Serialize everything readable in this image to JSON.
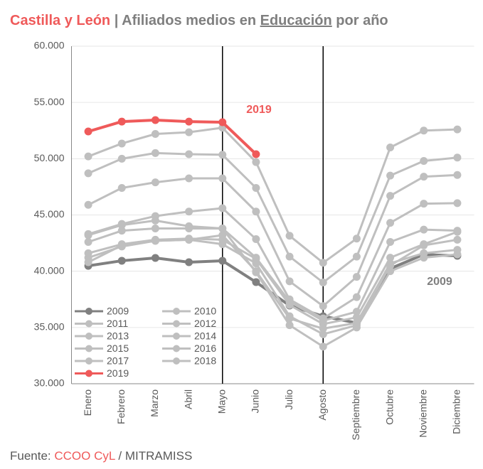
{
  "chart_data": {
    "type": "line",
    "title_parts": [
      {
        "text": "Castilla y León",
        "color": "#ef5a5a"
      },
      {
        "text": " | Afiliados medios en ",
        "color": "#7f7f7f"
      },
      {
        "text": "Educación",
        "color": "#7f7f7f",
        "underline": true
      },
      {
        "text": " por año",
        "color": "#7f7f7f"
      }
    ],
    "source_parts": [
      {
        "text": "Fuente: ",
        "color": "#595959"
      },
      {
        "text": "CCOO CyL",
        "color": "#ef5a5a"
      },
      {
        "text": " / MITRAMISS",
        "color": "#595959"
      }
    ],
    "categories": [
      "Enero",
      "Febrero",
      "Marzo",
      "Abril",
      "Mayo",
      "Junio",
      "Julio",
      "Agosto",
      "Septiembre",
      "Octubre",
      "Noviembre",
      "Diciembre"
    ],
    "ylim": [
      30000,
      60000
    ],
    "yticks": [
      {
        "value": 30000,
        "label": "30.000"
      },
      {
        "value": 35000,
        "label": "35.000"
      },
      {
        "value": 40000,
        "label": "40.000"
      },
      {
        "value": 45000,
        "label": "45.000"
      },
      {
        "value": 50000,
        "label": "50.000"
      },
      {
        "value": 55000,
        "label": "55.000"
      },
      {
        "value": 60000,
        "label": "60.000"
      }
    ],
    "grid": true,
    "vlines": [
      "Mayo",
      "Agosto"
    ],
    "annotations": [
      {
        "text": "2019",
        "color": "#ef5a5a"
      },
      {
        "text": "2009",
        "color": "#7f7f7f"
      }
    ],
    "series": [
      {
        "name": "2009",
        "color": "#808080",
        "values": [
          40480,
          40930,
          41180,
          40800,
          40930,
          39030,
          36950,
          36000,
          35400,
          40230,
          41490,
          41370
        ]
      },
      {
        "name": "2010",
        "color": "#bfbfbf",
        "values": [
          40800,
          42300,
          42700,
          42800,
          42400,
          40700,
          36000,
          34400,
          35200,
          40500,
          42300,
          42800
        ]
      },
      {
        "name": "2011",
        "color": "#bfbfbf",
        "values": [
          41200,
          42200,
          42700,
          42800,
          43200,
          40000,
          35800,
          34900,
          35400,
          40700,
          41600,
          41900
        ]
      },
      {
        "name": "2012",
        "color": "#bfbfbf",
        "values": [
          43200,
          44100,
          44500,
          44000,
          43800,
          39900,
          35200,
          33300,
          35000,
          40000,
          41200,
          41500
        ]
      },
      {
        "name": "2013",
        "color": "#bfbfbf",
        "values": [
          41600,
          42400,
          42800,
          42900,
          42800,
          41100,
          37000,
          35300,
          35900,
          41200,
          42400,
          43500
        ]
      },
      {
        "name": "2014",
        "color": "#bfbfbf",
        "values": [
          42600,
          43600,
          43800,
          43800,
          43800,
          41200,
          37300,
          35600,
          36400,
          42600,
          43700,
          43600
        ]
      },
      {
        "name": "2015",
        "color": "#bfbfbf",
        "values": [
          43300,
          44200,
          44900,
          45300,
          45600,
          42850,
          37500,
          35800,
          37700,
          44300,
          46000,
          46050
        ]
      },
      {
        "name": "2016",
        "color": "#bfbfbf",
        "values": [
          45900,
          47400,
          47900,
          48250,
          48250,
          45300,
          39100,
          36900,
          39500,
          46700,
          48400,
          48550
        ]
      },
      {
        "name": "2017",
        "color": "#bfbfbf",
        "values": [
          48700,
          50000,
          50500,
          50400,
          50350,
          47400,
          41300,
          39000,
          41300,
          48500,
          49800,
          50100
        ]
      },
      {
        "name": "2018",
        "color": "#bfbfbf",
        "values": [
          50200,
          51350,
          52200,
          52350,
          52750,
          49700,
          43150,
          40750,
          42900,
          51000,
          52500,
          52600
        ]
      },
      {
        "name": "2019",
        "color": "#ef5a5a",
        "values": [
          52420,
          53300,
          53430,
          53300,
          53240,
          50400,
          null,
          null,
          null,
          null,
          null,
          null
        ]
      }
    ]
  }
}
